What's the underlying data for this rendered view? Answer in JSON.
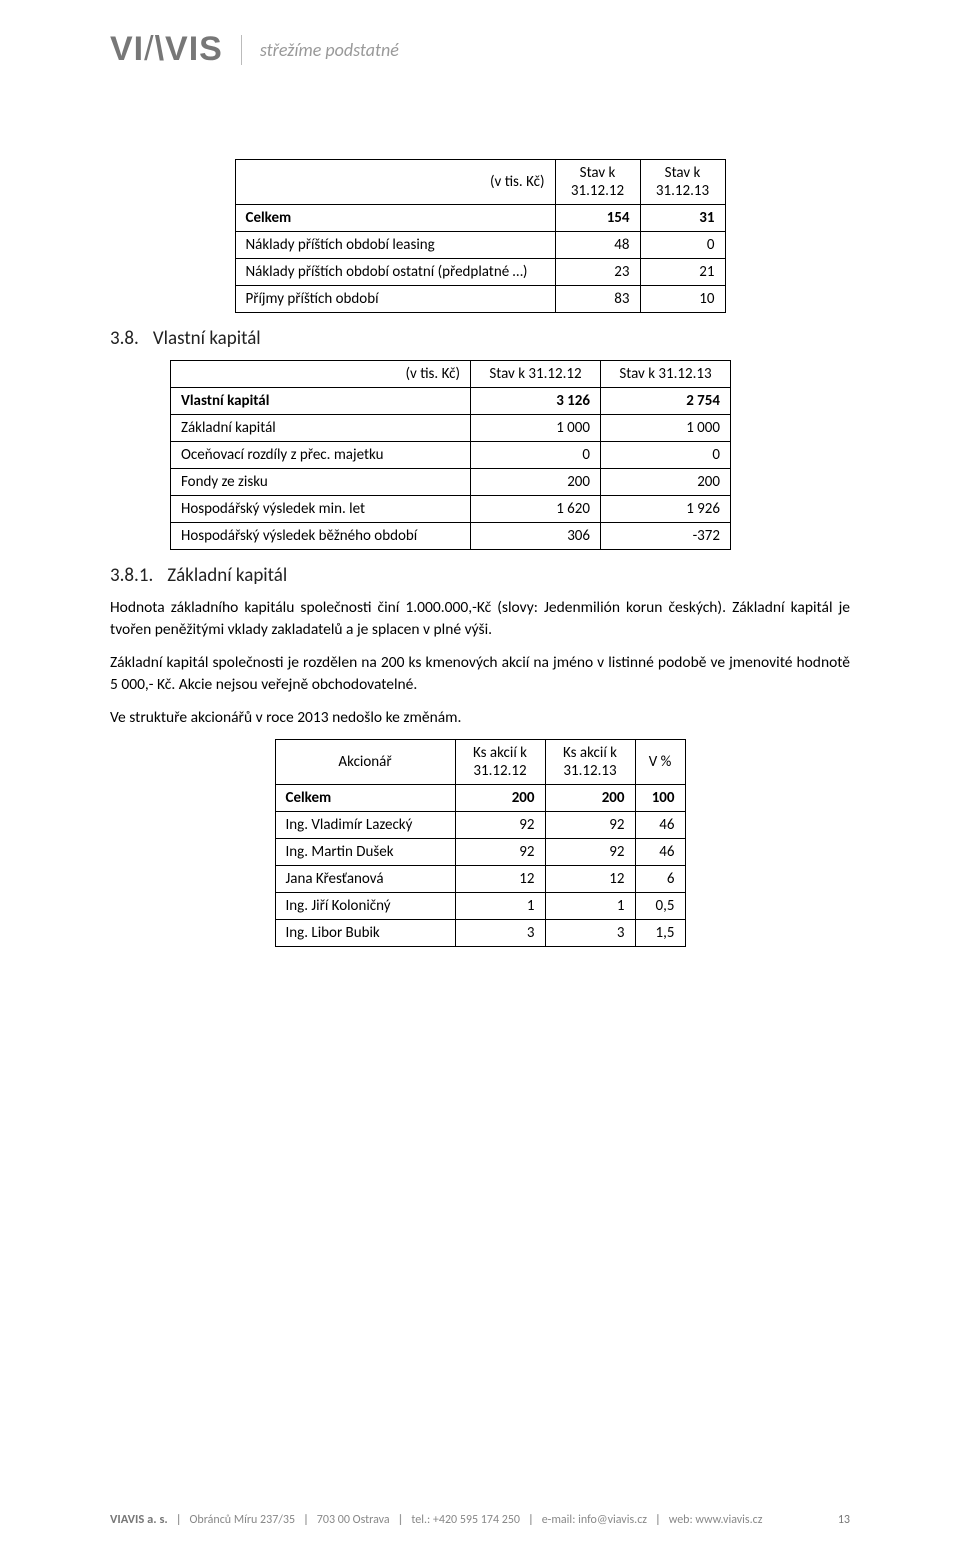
{
  "header": {
    "logo": "VIAVIS",
    "tagline": "střežíme podstatné"
  },
  "table1": {
    "unit_label": "(v tis. Kč)",
    "col1": "Stav k 31.12.12",
    "col2": "Stav k 31.12.13",
    "rows": [
      {
        "label": "Celkem",
        "v1": "154",
        "v2": "31",
        "bold": true
      },
      {
        "label": "Náklady příštích období leasing",
        "v1": "48",
        "v2": "0"
      },
      {
        "label": "Náklady příštích období ostatní (předplatné …)",
        "v1": "23",
        "v2": "21"
      },
      {
        "label": "Příjmy příštích období",
        "v1": "83",
        "v2": "10"
      }
    ]
  },
  "sec38": {
    "num": "3.8.",
    "title": "Vlastní kapitál"
  },
  "table2": {
    "unit_label": "(v tis. Kč)",
    "col1": "Stav k 31.12.12",
    "col2": "Stav k 31.12.13",
    "rows": [
      {
        "label": "Vlastní kapitál",
        "v1": "3 126",
        "v2": "2 754",
        "bold": true
      },
      {
        "label": "Základní kapitál",
        "v1": "1 000",
        "v2": "1 000"
      },
      {
        "label": "Oceňovací rozdíly z přec. majetku",
        "v1": "0",
        "v2": "0"
      },
      {
        "label": "Fondy ze zisku",
        "v1": "200",
        "v2": "200"
      },
      {
        "label": "Hospodářský výsledek min. let",
        "v1": "1 620",
        "v2": "1 926"
      },
      {
        "label": "Hospodářský výsledek běžného období",
        "v1": "306",
        "v2": "-372"
      }
    ]
  },
  "sec381": {
    "num": "3.8.1.",
    "title": "Základní kapitál"
  },
  "paragraphs": {
    "p1": "Hodnota základního kapitálu společnosti činí 1.000.000,-Kč (slovy: Jedenmilión korun českých). Základní kapitál je tvořen peněžitými vklady zakladatelů a je splacen v plné výši.",
    "p2": "Základní kapitál společnosti je rozdělen na 200 ks kmenových akcií na jméno v listinné podobě ve jmenovité hodnotě 5 000,- Kč. Akcie nejsou veřejně obchodovatelné.",
    "p3": "Ve struktuře akcionářů v roce 2013 nedošlo ke změnám."
  },
  "table3": {
    "col0": "Akcionář",
    "col1": "Ks akcií k 31.12.12",
    "col2": "Ks akcií k 31.12.13",
    "col3": "V %",
    "rows": [
      {
        "label": "Celkem",
        "v1": "200",
        "v2": "200",
        "v3": "100",
        "bold": true
      },
      {
        "label": "Ing. Vladimír Lazecký",
        "v1": "92",
        "v2": "92",
        "v3": "46"
      },
      {
        "label": "Ing. Martin Dušek",
        "v1": "92",
        "v2": "92",
        "v3": "46"
      },
      {
        "label": "Jana Křesťanová",
        "v1": "12",
        "v2": "12",
        "v3": "6"
      },
      {
        "label": "Ing. Jiří Koloničný",
        "v1": "1",
        "v2": "1",
        "v3": "0,5"
      },
      {
        "label": "Ing. Libor Bubik",
        "v1": "3",
        "v2": "3",
        "v3": "1,5"
      }
    ]
  },
  "footer": {
    "company": "VIAVIS a. s.",
    "addr1": "Obránců Míru 237/35",
    "addr2": "703 00 Ostrava",
    "tel": "tel.: +420 595 174 250",
    "email": "e-mail: info@viavis.cz",
    "web": "web: www.viavis.cz",
    "page": "13"
  }
}
